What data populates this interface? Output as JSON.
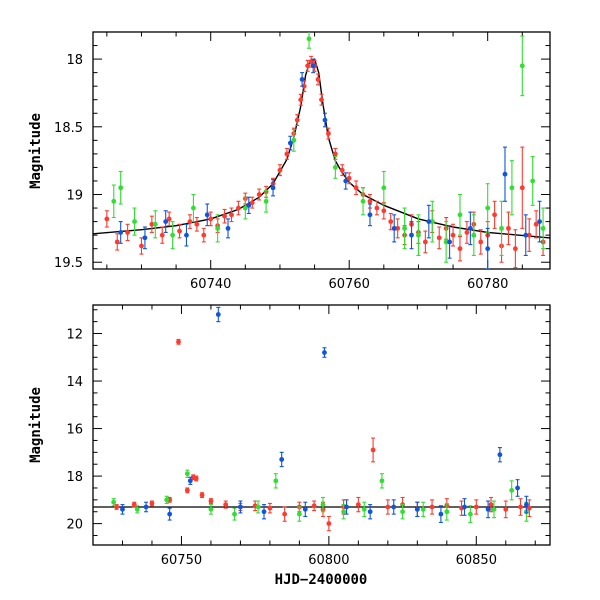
{
  "chart_data": [
    {
      "type": "scatter",
      "panel": "top",
      "ylabel": "Magnitude",
      "xlabel": "",
      "xlim": [
        60723,
        60789
      ],
      "ylim": [
        19.55,
        17.8
      ],
      "y_inverted": true,
      "xticks": [
        60740,
        60760,
        60780
      ],
      "yticks": [
        18,
        18.5,
        19,
        19.5
      ],
      "ytick_labels": [
        "18",
        "18.5",
        "19",
        "19.5"
      ],
      "grid": false,
      "legend": "none",
      "colors": {
        "r": "#ff3b2f",
        "g": "#33dd33",
        "b": "#1155dd",
        "model": "#000000"
      },
      "model_curve": {
        "x": [
          60723,
          60730,
          60735,
          60740,
          60744,
          60747,
          60749,
          60751,
          60752,
          60753,
          60753.7,
          60754.3,
          60755,
          60755.6,
          60756.2,
          60757,
          60758,
          60759,
          60760,
          60762,
          60765,
          60770,
          60775,
          60780,
          60789
        ],
        "y": [
          19.29,
          19.26,
          19.23,
          19.18,
          19.11,
          19.02,
          18.92,
          18.74,
          18.58,
          18.35,
          18.12,
          18.02,
          18.0,
          18.1,
          18.33,
          18.58,
          18.75,
          18.84,
          18.91,
          19.0,
          19.08,
          19.18,
          19.24,
          19.28,
          19.32
        ]
      },
      "series": [
        {
          "name": "",
          "color_key": "r",
          "x": [
            60725,
            60726.5,
            60728,
            60730,
            60731.5,
            60733,
            60734,
            60735.5,
            60737,
            60738,
            60739,
            60740,
            60741,
            60742,
            60743,
            60744,
            60745,
            60746,
            60747,
            60748,
            60749,
            60750,
            60751,
            60752,
            60752.5,
            60753,
            60753.5,
            60754,
            60754.5,
            60755,
            60755.5,
            60756,
            60757,
            60758,
            60759,
            60760,
            60761,
            60762,
            60763,
            60764,
            60765,
            60766,
            60767,
            60768,
            60769,
            60770,
            60771,
            60772,
            60773,
            60774,
            60775,
            60776,
            60777,
            60778,
            60779,
            60780,
            60781,
            60782,
            60783,
            60784,
            60785,
            60786,
            60787,
            60788
          ],
          "y": [
            19.18,
            19.35,
            19.28,
            19.38,
            19.22,
            19.3,
            19.18,
            19.27,
            19.2,
            19.22,
            19.3,
            19.18,
            19.23,
            19.16,
            19.15,
            19.1,
            19.03,
            19.06,
            19.0,
            18.98,
            18.92,
            18.82,
            18.7,
            18.55,
            18.45,
            18.3,
            18.2,
            18.05,
            18.02,
            18.05,
            18.15,
            18.3,
            18.55,
            18.7,
            18.82,
            18.88,
            18.95,
            19.0,
            19.05,
            19.1,
            19.12,
            19.2,
            19.25,
            19.3,
            19.22,
            19.28,
            19.35,
            19.2,
            19.32,
            19.25,
            19.3,
            19.4,
            19.28,
            19.22,
            19.35,
            19.3,
            19.15,
            19.38,
            19.25,
            19.4,
            18.95,
            19.3,
            19.22,
            19.35
          ],
          "err": [
            0.06,
            0.06,
            0.06,
            0.06,
            0.06,
            0.06,
            0.05,
            0.05,
            0.05,
            0.05,
            0.05,
            0.05,
            0.05,
            0.05,
            0.05,
            0.05,
            0.04,
            0.04,
            0.04,
            0.04,
            0.04,
            0.04,
            0.04,
            0.04,
            0.04,
            0.04,
            0.04,
            0.04,
            0.04,
            0.04,
            0.04,
            0.04,
            0.04,
            0.04,
            0.04,
            0.04,
            0.05,
            0.05,
            0.05,
            0.05,
            0.06,
            0.06,
            0.07,
            0.07,
            0.07,
            0.08,
            0.08,
            0.08,
            0.08,
            0.08,
            0.08,
            0.09,
            0.08,
            0.09,
            0.09,
            0.1,
            0.1,
            0.12,
            0.12,
            0.14,
            0.3,
            0.12,
            0.1,
            0.1
          ]
        },
        {
          "name": "",
          "color_key": "g",
          "x": [
            60726,
            60727,
            60729,
            60732,
            60734.5,
            60737.5,
            60741,
            60745,
            60748,
            60752,
            60754.2,
            60758,
            60762,
            60765,
            60768,
            60770,
            60772,
            60774,
            60776,
            60778,
            60780,
            60782,
            60783.5,
            60785,
            60786.5,
            60788
          ],
          "y": [
            19.05,
            18.95,
            19.2,
            19.22,
            19.3,
            19.1,
            19.25,
            19.1,
            19.05,
            18.6,
            17.85,
            18.8,
            19.05,
            18.95,
            19.25,
            19.3,
            19.2,
            19.35,
            19.15,
            19.3,
            19.1,
            19.25,
            18.95,
            18.05,
            18.9,
            19.25
          ],
          "err": [
            0.12,
            0.12,
            0.1,
            0.1,
            0.1,
            0.1,
            0.1,
            0.08,
            0.08,
            0.08,
            0.07,
            0.08,
            0.1,
            0.12,
            0.15,
            0.15,
            0.15,
            0.15,
            0.15,
            0.15,
            0.18,
            0.2,
            0.2,
            0.22,
            0.18,
            0.15
          ]
        },
        {
          "name": "",
          "color_key": "b",
          "x": [
            60727,
            60730.5,
            60733.5,
            60736.5,
            60739.5,
            60742.5,
            60745.5,
            60749,
            60751.5,
            60753.2,
            60754.8,
            60756.5,
            60759.5,
            60763,
            60766.5,
            60769,
            60771.5,
            60774.5,
            60777.5,
            60780,
            60782.5,
            60785.5,
            60787.5
          ],
          "y": [
            19.28,
            19.32,
            19.2,
            19.3,
            19.15,
            19.25,
            19.08,
            18.95,
            18.62,
            18.15,
            18.05,
            18.45,
            18.9,
            19.15,
            19.25,
            19.3,
            19.2,
            19.35,
            19.25,
            19.4,
            18.85,
            19.3,
            19.2
          ],
          "err": [
            0.08,
            0.08,
            0.08,
            0.08,
            0.08,
            0.07,
            0.06,
            0.06,
            0.05,
            0.05,
            0.05,
            0.05,
            0.06,
            0.08,
            0.1,
            0.1,
            0.12,
            0.12,
            0.12,
            0.15,
            0.2,
            0.15,
            0.15
          ]
        }
      ]
    },
    {
      "type": "scatter",
      "panel": "bottom",
      "ylabel": "Magnitude",
      "xlabel": "HJD−2400000",
      "xlim": [
        60720,
        60875
      ],
      "ylim": [
        20.9,
        10.8
      ],
      "y_inverted": true,
      "xticks": [
        60750,
        60800,
        60850
      ],
      "yticks": [
        12,
        14,
        16,
        18,
        20
      ],
      "ytick_labels": [
        "12",
        "14",
        "16",
        "18",
        "20"
      ],
      "grid": false,
      "legend": "none",
      "colors": {
        "r": "#ff3b2f",
        "g": "#33dd33",
        "b": "#1155dd",
        "model": "#000000"
      },
      "hline_y": 19.3,
      "series": [
        {
          "name": "",
          "color_key": "r",
          "x": [
            60728,
            60734,
            60740,
            60746,
            60749,
            60752,
            60754,
            60755,
            60757,
            60760,
            60765,
            60770,
            60775,
            60780,
            60785,
            60790,
            60795,
            60798,
            60800,
            60805,
            60810,
            60815,
            60820,
            60825,
            60830,
            60835,
            60840,
            60845,
            60850,
            60855,
            60860,
            60865,
            60868
          ],
          "y": [
            19.3,
            19.2,
            19.15,
            19.0,
            12.35,
            18.6,
            18.05,
            18.1,
            18.8,
            19.05,
            19.2,
            19.3,
            19.25,
            19.35,
            19.6,
            19.3,
            19.25,
            19.4,
            20.0,
            19.3,
            19.2,
            16.9,
            19.3,
            19.2,
            19.4,
            19.3,
            19.25,
            19.35,
            19.3,
            19.2,
            19.4,
            19.3,
            19.35
          ],
          "err": [
            0.1,
            0.1,
            0.1,
            0.1,
            0.1,
            0.1,
            0.1,
            0.1,
            0.1,
            0.1,
            0.15,
            0.15,
            0.2,
            0.2,
            0.3,
            0.2,
            0.2,
            0.3,
            0.3,
            0.3,
            0.3,
            0.5,
            0.3,
            0.3,
            0.3,
            0.3,
            0.3,
            0.3,
            0.3,
            0.3,
            0.35,
            0.35,
            0.35
          ]
        },
        {
          "name": "",
          "color_key": "g",
          "x": [
            60727,
            60735,
            60745,
            60752,
            60760,
            60768,
            60776,
            60782,
            60790,
            60798,
            60805,
            60812,
            60818,
            60825,
            60832,
            60840,
            60848,
            60856,
            60862,
            60867
          ],
          "y": [
            19.1,
            19.4,
            19.0,
            17.9,
            19.4,
            19.6,
            19.3,
            18.2,
            19.6,
            19.2,
            19.5,
            19.4,
            18.2,
            19.5,
            19.4,
            19.5,
            19.6,
            19.4,
            18.6,
            19.5
          ],
          "err": [
            0.15,
            0.15,
            0.15,
            0.15,
            0.2,
            0.25,
            0.25,
            0.3,
            0.3,
            0.3,
            0.3,
            0.3,
            0.3,
            0.3,
            0.3,
            0.35,
            0.35,
            0.35,
            0.4,
            0.4
          ]
        },
        {
          "name": "",
          "color_key": "b",
          "x": [
            60730,
            60738,
            60746,
            60753,
            60762.5,
            60770,
            60778,
            60784,
            60792,
            60798.5,
            60806,
            60814,
            60822,
            60830,
            60838,
            60846,
            60854,
            60858,
            60864,
            60867
          ],
          "y": [
            19.4,
            19.3,
            19.6,
            18.2,
            11.2,
            19.3,
            19.5,
            17.3,
            19.4,
            12.8,
            19.3,
            19.5,
            19.3,
            19.4,
            19.6,
            19.3,
            19.4,
            17.1,
            18.5,
            19.2
          ],
          "err": [
            0.2,
            0.2,
            0.25,
            0.15,
            0.3,
            0.25,
            0.3,
            0.3,
            0.3,
            0.2,
            0.3,
            0.3,
            0.3,
            0.3,
            0.35,
            0.35,
            0.35,
            0.3,
            0.35,
            0.35
          ]
        }
      ]
    }
  ]
}
